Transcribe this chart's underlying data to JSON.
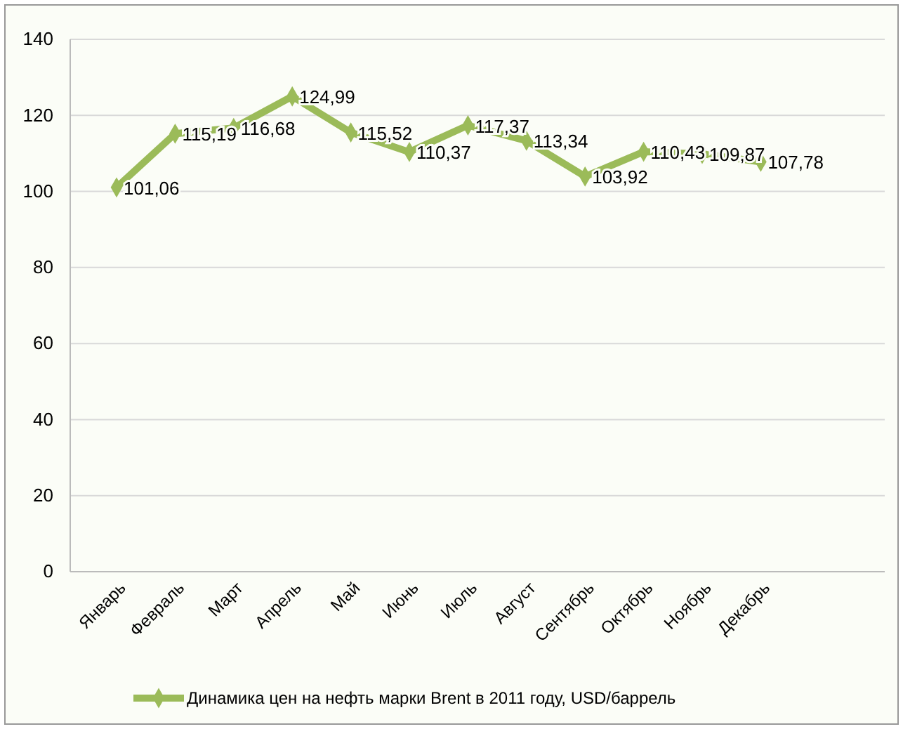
{
  "chart_data": {
    "type": "line",
    "categories": [
      "Январь",
      "Февраль",
      "Март",
      "Апрель",
      "Май",
      "Июнь",
      "Июль",
      "Август",
      "Сентябрь",
      "Октябрь",
      "Ноябрь",
      "Декабрь"
    ],
    "series": [
      {
        "name": "Динамика цен на нефть марки Brent в 2011 году, USD/баррель",
        "color": "#9bbb59",
        "values": [
          101.06,
          115.19,
          116.68,
          124.99,
          115.52,
          110.37,
          117.37,
          113.34,
          103.92,
          110.43,
          109.87,
          107.78
        ],
        "value_labels": [
          "101,06",
          "115,19",
          "116,68",
          "124,99",
          "115,52",
          "110,37",
          "117,37",
          "113,34",
          "103,92",
          "110,43",
          "109,87",
          "107,78"
        ]
      }
    ],
    "ylim": [
      0,
      140
    ],
    "yticks": [
      0,
      20,
      40,
      60,
      80,
      100,
      120,
      140
    ],
    "grid": "y",
    "legend": "bottom",
    "marker": "diamond",
    "line_style": "solid"
  }
}
